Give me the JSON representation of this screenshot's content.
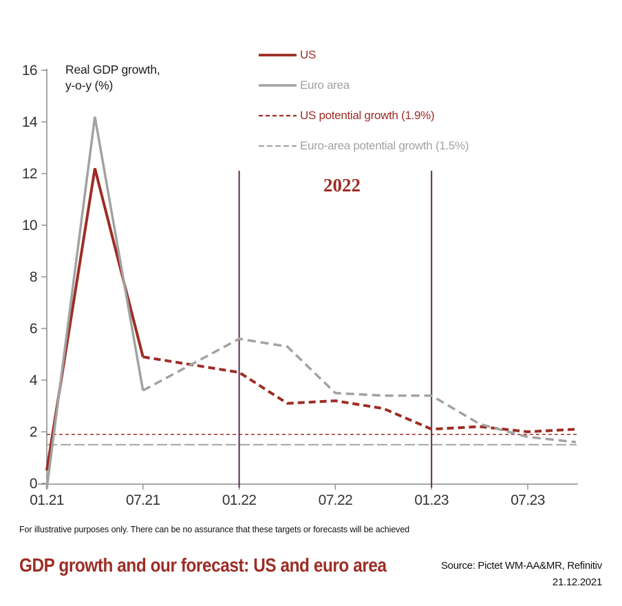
{
  "axis_note": {
    "line1": "Real GDP growth,",
    "line2": "y-o-y (%)"
  },
  "legend": {
    "items": [
      {
        "label": "US",
        "color": "#9d2d25",
        "dash": "",
        "width": 3.8
      },
      {
        "label": "Euro area",
        "color": "#a2a2a2",
        "dash": "",
        "width": 3.5
      },
      {
        "label": "US potential growth (1.9%)",
        "color": "#9d2d25",
        "dash": "6 4",
        "width": 2.2
      },
      {
        "label": "Euro-area potential growth (1.5%)",
        "color": "#a2a2a2",
        "dash": "8 4",
        "width": 2.2
      }
    ]
  },
  "disclaimer": "For illustrative purposes only. There can be no assurance that these targets or forecasts will be achieved",
  "title": "GDP growth and our forecast: US and euro area",
  "source": {
    "line1": "Source: Pictet WM-AA&MR, Refinitiv",
    "line2": "21.12.2021"
  },
  "palette": {
    "red": "#9d2d25",
    "gray": "#a2a2a2",
    "purple": "#5b2a50",
    "axis": "#8c8c8c"
  },
  "chart_data": {
    "type": "line",
    "ylabel": "Real GDP growth, y-o-y (%)",
    "ylim": [
      0,
      16
    ],
    "y_ticks": [
      0,
      2,
      4,
      6,
      8,
      10,
      12,
      14,
      16
    ],
    "x_unit": "months since 01.2021, quarterly points",
    "x_ticks": [
      {
        "m": 0,
        "label": "01.21"
      },
      {
        "m": 6,
        "label": "07.21"
      },
      {
        "m": 12,
        "label": "01.22"
      },
      {
        "m": 18,
        "label": "07.22"
      },
      {
        "m": 24,
        "label": "01.23"
      },
      {
        "m": 30,
        "label": "07.23"
      }
    ],
    "series": [
      {
        "name": "US (actual)",
        "color": "#9d2d25",
        "width": 4,
        "dash": "",
        "points": [
          [
            0,
            0.5
          ],
          [
            3,
            12.2
          ],
          [
            6,
            4.9
          ]
        ]
      },
      {
        "name": "Euro area (actual)",
        "color": "#a2a2a2",
        "width": 3.5,
        "dash": "",
        "points": [
          [
            0,
            -0.2
          ],
          [
            3,
            14.2
          ],
          [
            6,
            3.6
          ]
        ]
      },
      {
        "name": "US (forecast)",
        "color": "#9d2d25",
        "width": 4,
        "dash": "10 6",
        "points": [
          [
            6,
            4.9
          ],
          [
            9,
            4.6
          ],
          [
            12,
            4.3
          ],
          [
            15,
            3.1
          ],
          [
            18,
            3.2
          ],
          [
            21,
            2.9
          ],
          [
            24,
            2.1
          ],
          [
            27,
            2.2
          ],
          [
            30,
            2.0
          ],
          [
            33,
            2.1
          ]
        ]
      },
      {
        "name": "Euro area (forecast)",
        "color": "#a2a2a2",
        "width": 3.5,
        "dash": "12 7",
        "points": [
          [
            6,
            3.6
          ],
          [
            9,
            4.6
          ],
          [
            12,
            5.6
          ],
          [
            15,
            5.3
          ],
          [
            18,
            3.5
          ],
          [
            21,
            3.4
          ],
          [
            24,
            3.4
          ],
          [
            27,
            2.3
          ],
          [
            30,
            1.8
          ],
          [
            33,
            1.6
          ]
        ]
      }
    ],
    "reference_lines": [
      {
        "name": "US potential growth",
        "value": 1.9,
        "color": "#9d2d25",
        "dash": "5 4",
        "width": 1.6
      },
      {
        "name": "Euro-area potential growth",
        "value": 1.5,
        "color": "#a2a2a2",
        "dash": "15 5",
        "width": 2
      }
    ],
    "vertical_lines": [
      {
        "m": 12,
        "label": "01.22",
        "color": "#5b2a50"
      },
      {
        "m": 24,
        "label": "01.23",
        "color": "#5b2a50"
      }
    ],
    "annotation": {
      "text": "2022"
    },
    "legend_position": "top-center",
    "grid": false
  }
}
